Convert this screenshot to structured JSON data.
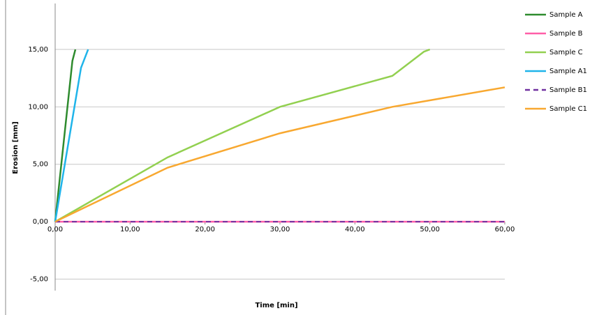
{
  "chart_data": {
    "type": "line",
    "x_label": "Time [min]",
    "y_label": "Erosion [mm]",
    "xlim": [
      0,
      60
    ],
    "ylim": [
      -6,
      19
    ],
    "xticks": [
      {
        "value": 0,
        "label": "0,00"
      },
      {
        "value": 10,
        "label": "10,00"
      },
      {
        "value": 20,
        "label": "20,00"
      },
      {
        "value": 30,
        "label": "30,00"
      },
      {
        "value": 40,
        "label": "40,00"
      },
      {
        "value": 50,
        "label": "50,00"
      },
      {
        "value": 60,
        "label": "60,00"
      }
    ],
    "yticks": [
      {
        "value": -5,
        "label": "-5,00"
      },
      {
        "value": 0,
        "label": "0,00"
      },
      {
        "value": 5,
        "label": "5,00"
      },
      {
        "value": 10,
        "label": "10,00"
      },
      {
        "value": 15,
        "label": "15,00"
      }
    ],
    "grid": true,
    "legend": "right",
    "series": [
      {
        "name": "Sample A",
        "color": "#2e8b2e",
        "x": [
          0,
          2.3,
          2.7
        ],
        "values": [
          0,
          14,
          15
        ]
      },
      {
        "name": "Sample B",
        "color": "#ff5fa8",
        "x": [
          0,
          60
        ],
        "values": [
          0,
          0
        ]
      },
      {
        "name": "Sample C",
        "color": "#92d050",
        "x": [
          0,
          15,
          30,
          45,
          49.2,
          50
        ],
        "values": [
          0,
          5.6,
          10,
          12.7,
          14.8,
          15
        ]
      },
      {
        "name": "Sample A1",
        "color": "#1fb4ea",
        "x": [
          0,
          3.45,
          4.4
        ],
        "values": [
          0,
          13.4,
          15
        ]
      },
      {
        "name": "Sample B1",
        "color": "#7030a0",
        "dash": true,
        "x": [
          0,
          60
        ],
        "values": [
          0,
          0
        ]
      },
      {
        "name": "Sample C1",
        "color": "#f8a830",
        "x": [
          0,
          15,
          30,
          45,
          60
        ],
        "values": [
          0,
          4.7,
          7.7,
          10,
          11.7
        ]
      }
    ]
  }
}
